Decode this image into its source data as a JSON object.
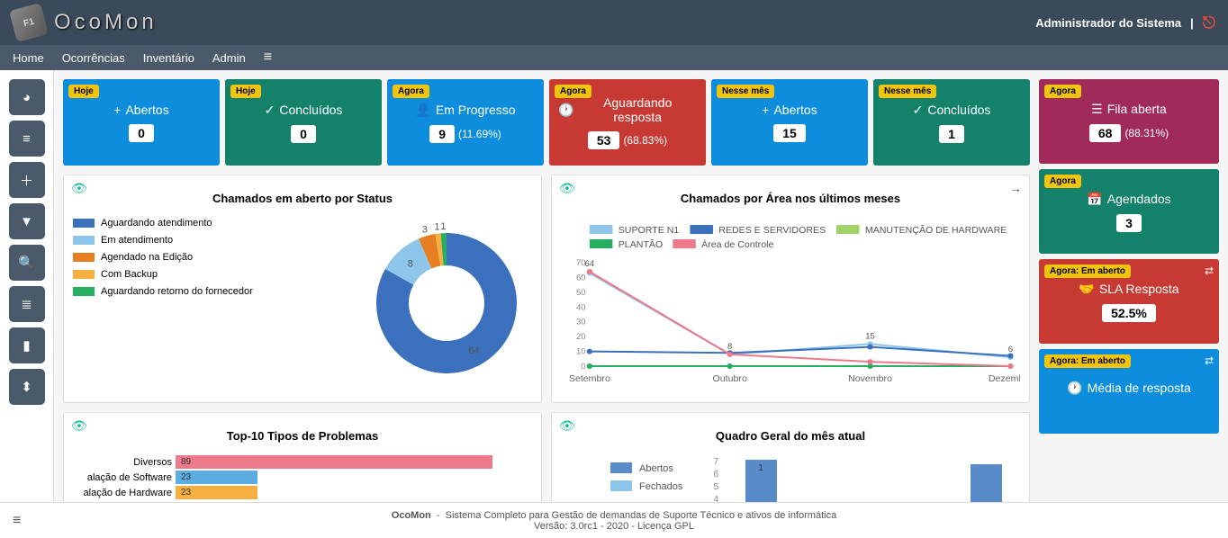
{
  "brand": "OcoMon",
  "user": "Administrador do Sistema",
  "nav": [
    "Home",
    "Ocorrências",
    "Inventário",
    "Admin"
  ],
  "sidebar_icons": [
    "dashboard",
    "list",
    "plus",
    "filter",
    "search",
    "database",
    "book",
    "chart"
  ],
  "top_cards": [
    {
      "badge": "Hoje",
      "title": "Abertos",
      "value": "0",
      "pct": "",
      "icon": "+",
      "bg": "#0d8ddb"
    },
    {
      "badge": "Hoje",
      "title": "Concluídos",
      "value": "0",
      "pct": "",
      "icon": "✓",
      "bg": "#14826a"
    },
    {
      "badge": "Agora",
      "title": "Em Progresso",
      "value": "9",
      "pct": "(11.69%)",
      "icon": "👤",
      "bg": "#0d8ddb"
    },
    {
      "badge": "Agora",
      "title": "Aguardando resposta",
      "value": "53",
      "pct": "(68.83%)",
      "icon": "🕐",
      "bg": "#c73a33"
    },
    {
      "badge": "Nesse mês",
      "title": "Abertos",
      "value": "15",
      "pct": "",
      "icon": "+",
      "bg": "#0d8ddb"
    },
    {
      "badge": "Nesse mês",
      "title": "Concluídos",
      "value": "1",
      "pct": "",
      "icon": "✓",
      "bg": "#14826a"
    }
  ],
  "side_cards": [
    {
      "badge": "Agora",
      "title": "Fila aberta",
      "value": "68",
      "pct": "(88.31%)",
      "icon": "☰",
      "bg": "#a02a5a",
      "swap": false
    },
    {
      "badge": "Agora",
      "title": "Agendados",
      "value": "3",
      "pct": "",
      "icon": "📅",
      "bg": "#14826a",
      "swap": false
    },
    {
      "badge": "Agora: Em aberto",
      "title": "SLA Resposta",
      "value": "52.5%",
      "pct": "",
      "icon": "🤝",
      "bg": "#c73a33",
      "swap": true
    },
    {
      "badge": "Agora: Em aberto",
      "title": "Média de resposta",
      "value": "",
      "pct": "",
      "icon": "🕐",
      "bg": "#0d8ddb",
      "swap": true
    }
  ],
  "donut": {
    "title": "Chamados em aberto por Status",
    "labels": [
      "Aguardando atendimento",
      "Em atendimento",
      "Agendado na Edição",
      "Com Backup",
      "Aguardando retorno do fornecedor"
    ],
    "values": [
      64,
      8,
      3,
      1,
      1
    ],
    "colors": [
      "#3b70bd",
      "#8ec5eb",
      "#e67e22",
      "#f5b041",
      "#27ae60"
    ]
  },
  "line": {
    "title": "Chamados por Área nos últimos meses",
    "series_labels": [
      "SUPORTE N1",
      "REDES E SERVIDORES",
      "MANUTENÇÃO DE HARDWARE",
      "PLANTÃO",
      "Área de Controle"
    ],
    "series_colors": [
      "#8ec5eb",
      "#3b70bd",
      "#a0d468",
      "#27ae60",
      "#ed7a8c"
    ],
    "x_labels": [
      "Setembro",
      "Outubro",
      "Novembro",
      "Dezembro"
    ],
    "y_ticks": [
      0,
      10,
      20,
      30,
      40,
      50,
      60,
      70
    ],
    "series": [
      [
        63,
        8,
        15,
        6
      ],
      [
        10,
        9,
        13,
        7
      ],
      [
        0,
        0,
        0,
        0
      ],
      [
        0,
        0,
        0,
        0
      ],
      [
        64,
        8,
        3,
        0
      ]
    ],
    "point_labels": [
      [
        "",
        "8",
        "15",
        "6"
      ],
      [
        "",
        "",
        "",
        ""
      ],
      [
        "",
        "",
        "",
        ""
      ],
      [
        "",
        "",
        "",
        ""
      ],
      [
        "64",
        "",
        "",
        ""
      ]
    ]
  },
  "top10": {
    "title": "Top-10 Tipos de Problemas",
    "labels": [
      "Diversos",
      "alação de Software",
      "alação de Hardware"
    ],
    "values": [
      89,
      23,
      23
    ],
    "colors": [
      "#ed7a8c",
      "#5dade2",
      "#f5b041"
    ],
    "max": 100
  },
  "quadro": {
    "title": "Quadro Geral do mês atual",
    "legend": [
      "Abertos",
      "Fechados"
    ],
    "legend_colors": [
      "#5a8bc9",
      "#8ec5eb"
    ],
    "y_ticks": [
      4,
      5,
      6,
      7
    ],
    "bars": [
      {
        "val": 1,
        "h": 50
      },
      {
        "val": 0,
        "h": 0
      },
      {
        "val": null,
        "h": 45
      }
    ]
  },
  "footer": {
    "line1a": "OcoMon",
    "line1b": "Sistema Completo para Gestão de demandas de Suporte Técnico e ativos de informática",
    "line2": "Versão: 3.0rc1 - 2020 - Licença GPL"
  }
}
